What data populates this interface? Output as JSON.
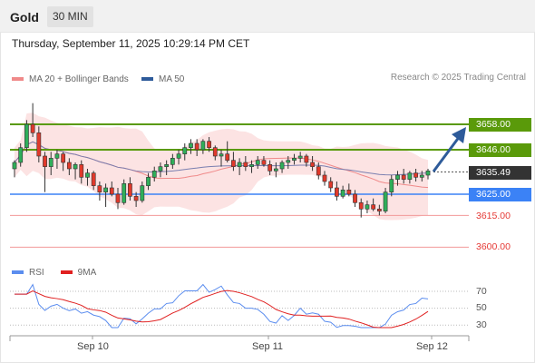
{
  "header": {
    "title": "Gold",
    "timeframe": "30 MIN"
  },
  "datetime": "Thursday, September 11, 2025 10:29:14 PM CET",
  "legend": {
    "items": [
      {
        "label": "MA 20 + Bollinger Bands",
        "color": "#f08a8a"
      },
      {
        "label": "MA 50",
        "color": "#2e5b9a"
      }
    ],
    "credit": "Research © 2025 Trading Central"
  },
  "levels": {
    "r2": {
      "label": "3658.00",
      "color": "#5a9a0a"
    },
    "r1": {
      "label": "3646.00",
      "color": "#5a9a0a"
    },
    "last": {
      "label": "3635.49",
      "color": "#333333"
    },
    "s1": {
      "label": "3625.00",
      "color": "#3b82f6"
    },
    "s2": {
      "label": "3615.00",
      "color": "#e53935"
    },
    "s3": {
      "label": "3600.00",
      "color": "#e53935"
    }
  },
  "rsi_legend": {
    "items": [
      {
        "label": "RSI",
        "color": "#5b8def"
      },
      {
        "label": "9MA",
        "color": "#e02020"
      }
    ],
    "ticks": [
      "70",
      "50",
      "30"
    ]
  },
  "x_axis": {
    "ticks": [
      "Sep 10",
      "Sep 11",
      "Sep 12"
    ]
  },
  "chart_data": {
    "type": "candlestick",
    "ylim": [
      3595,
      3680
    ],
    "levels": [
      3658,
      3646,
      3635.49,
      3625,
      3615,
      3600
    ],
    "candles": [
      [
        3637,
        3641,
        3633,
        3640
      ],
      [
        3640,
        3649,
        3638,
        3647
      ],
      [
        3647,
        3660,
        3645,
        3658
      ],
      [
        3658,
        3668,
        3652,
        3654
      ],
      [
        3654,
        3657,
        3640,
        3643
      ],
      [
        3643,
        3645,
        3626,
        3638
      ],
      [
        3638,
        3645,
        3634,
        3642
      ],
      [
        3642,
        3646,
        3637,
        3644
      ],
      [
        3644,
        3645,
        3636,
        3640
      ],
      [
        3640,
        3642,
        3634,
        3637
      ],
      [
        3637,
        3640,
        3632,
        3639
      ],
      [
        3639,
        3641,
        3630,
        3633
      ],
      [
        3633,
        3637,
        3629,
        3635
      ],
      [
        3635,
        3636,
        3627,
        3629
      ],
      [
        3629,
        3631,
        3622,
        3626
      ],
      [
        3626,
        3630,
        3619,
        3628
      ],
      [
        3628,
        3631,
        3624,
        3625
      ],
      [
        3625,
        3628,
        3618,
        3621
      ],
      [
        3621,
        3632,
        3620,
        3630
      ],
      [
        3630,
        3633,
        3622,
        3624
      ],
      [
        3624,
        3626,
        3619,
        3622
      ],
      [
        3622,
        3631,
        3621,
        3629
      ],
      [
        3629,
        3635,
        3627,
        3633
      ],
      [
        3633,
        3638,
        3631,
        3636
      ],
      [
        3636,
        3640,
        3633,
        3638
      ],
      [
        3638,
        3641,
        3634,
        3639
      ],
      [
        3639,
        3644,
        3637,
        3642
      ],
      [
        3642,
        3646,
        3639,
        3644
      ],
      [
        3644,
        3649,
        3641,
        3647
      ],
      [
        3647,
        3651,
        3644,
        3649
      ],
      [
        3649,
        3651,
        3643,
        3646
      ],
      [
        3646,
        3651,
        3644,
        3650
      ],
      [
        3650,
        3652,
        3645,
        3647
      ],
      [
        3647,
        3648,
        3641,
        3643
      ],
      [
        3643,
        3646,
        3638,
        3644
      ],
      [
        3644,
        3650,
        3640,
        3641
      ],
      [
        3641,
        3645,
        3636,
        3638
      ],
      [
        3638,
        3642,
        3634,
        3640
      ],
      [
        3640,
        3643,
        3636,
        3638
      ],
      [
        3638,
        3641,
        3635,
        3639
      ],
      [
        3639,
        3643,
        3637,
        3641
      ],
      [
        3641,
        3643,
        3638,
        3639
      ],
      [
        3639,
        3641,
        3634,
        3636
      ],
      [
        3636,
        3640,
        3633,
        3637
      ],
      [
        3637,
        3641,
        3635,
        3640
      ],
      [
        3640,
        3643,
        3637,
        3641
      ],
      [
        3641,
        3644,
        3639,
        3642
      ],
      [
        3642,
        3645,
        3640,
        3643
      ],
      [
        3643,
        3644,
        3638,
        3640
      ],
      [
        3640,
        3643,
        3636,
        3638
      ],
      [
        3638,
        3640,
        3632,
        3634
      ],
      [
        3634,
        3636,
        3629,
        3631
      ],
      [
        3631,
        3633,
        3626,
        3628
      ],
      [
        3628,
        3631,
        3622,
        3624
      ],
      [
        3624,
        3629,
        3623,
        3627
      ],
      [
        3627,
        3630,
        3624,
        3625
      ],
      [
        3625,
        3627,
        3619,
        3621
      ],
      [
        3621,
        3623,
        3614,
        3618
      ],
      [
        3618,
        3622,
        3616,
        3620
      ],
      [
        3620,
        3623,
        3617,
        3618
      ],
      [
        3618,
        3620,
        3615,
        3617
      ],
      [
        3617,
        3628,
        3616,
        3626
      ],
      [
        3626,
        3634,
        3624,
        3632
      ],
      [
        3632,
        3636,
        3629,
        3634
      ],
      [
        3634,
        3637,
        3630,
        3632
      ],
      [
        3632,
        3636,
        3630,
        3635
      ],
      [
        3635,
        3637,
        3631,
        3633
      ],
      [
        3633,
        3636,
        3631,
        3634
      ],
      [
        3634,
        3637,
        3632,
        3636
      ]
    ],
    "rsi": {
      "ticks": [
        70,
        50,
        30
      ],
      "ylim": [
        25,
        80
      ]
    }
  }
}
